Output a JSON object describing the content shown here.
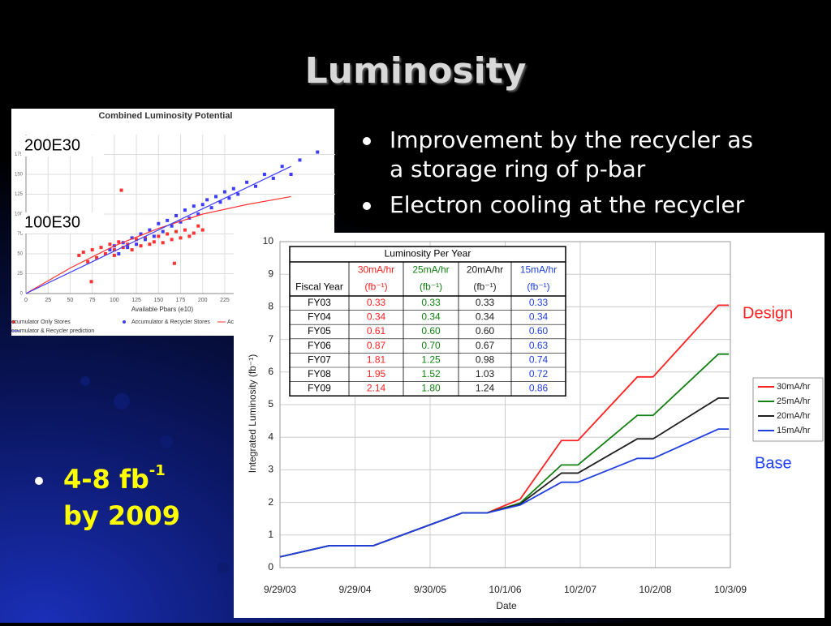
{
  "title": "Luminosity",
  "bullets": [
    "Improvement by the recycler as a storage ring of p-bar",
    "Electron cooling at the recycler"
  ],
  "bullet_lines": [
    [
      "Improvement by the recycler as",
      "a storage ring of p-bar"
    ],
    [
      "Electron cooling at the recycler"
    ]
  ],
  "highlight": {
    "parts": [
      "4-8 fb",
      "-1",
      "by 2009"
    ],
    "color": "#ffff00"
  },
  "chart_data": [
    {
      "type": "scatter",
      "title": "Combined Luminosity Potential",
      "x_label": "Available Pbars (e10)",
      "annotations": [
        "200E30",
        "100E30"
      ],
      "xlim": [
        0,
        350
      ],
      "ylim": [
        0,
        200
      ],
      "xticks": [
        0,
        25,
        50,
        75,
        100,
        125,
        150,
        175,
        200,
        225
      ],
      "yticks": [
        0,
        25,
        50,
        75,
        100,
        125,
        150,
        175
      ],
      "grid": true,
      "series": [
        {
          "name": "ccumulator Only Stores",
          "color": "#ff3030",
          "kind": "points",
          "x": [
            60,
            65,
            70,
            75,
            80,
            85,
            90,
            95,
            100,
            100,
            105,
            110,
            115,
            120,
            125,
            130,
            135,
            140,
            145,
            150,
            155,
            160,
            165,
            170,
            175,
            180,
            185,
            190,
            195,
            200,
            168,
            108,
            74
          ],
          "values": [
            48,
            52,
            40,
            55,
            45,
            58,
            50,
            62,
            55,
            48,
            65,
            58,
            62,
            55,
            68,
            60,
            70,
            62,
            65,
            72,
            64,
            75,
            68,
            78,
            70,
            80,
            72,
            76,
            85,
            80,
            38,
            130,
            15
          ]
        },
        {
          "name": "Accumulator & Recycler Stores",
          "color": "#3c3cff",
          "kind": "points",
          "x": [
            95,
            100,
            105,
            110,
            115,
            120,
            125,
            130,
            135,
            140,
            145,
            150,
            155,
            160,
            165,
            170,
            175,
            180,
            185,
            190,
            195,
            200,
            205,
            210,
            215,
            220,
            225,
            230,
            235,
            240,
            250,
            260,
            270,
            280,
            290,
            300,
            310,
            330
          ],
          "values": [
            55,
            60,
            50,
            64,
            58,
            70,
            62,
            75,
            68,
            80,
            72,
            88,
            78,
            92,
            85,
            98,
            90,
            105,
            95,
            110,
            100,
            112,
            118,
            108,
            122,
            115,
            128,
            120,
            132,
            125,
            140,
            135,
            150,
            145,
            160,
            150,
            168,
            178
          ]
        },
        {
          "name": "Accumulat",
          "color": "#ff3030",
          "kind": "line",
          "x": [
            0,
            50,
            100,
            150,
            200,
            250,
            300
          ],
          "values": [
            0,
            32,
            60,
            82,
            100,
            112,
            122
          ]
        },
        {
          "name": "ccumulator & Recycler prediction",
          "color": "#3c3cff",
          "kind": "line",
          "x": [
            0,
            300
          ],
          "values": [
            0,
            160
          ]
        }
      ]
    },
    {
      "type": "line",
      "x_label": "Date",
      "y_label": "Integrated Luminosity (fb⁻¹)",
      "xlim": [
        0,
        6
      ],
      "ylim": [
        0,
        10
      ],
      "xticks": [
        {
          "value": 0,
          "label": "9/29/03"
        },
        {
          "value": 1,
          "label": "9/29/04"
        },
        {
          "value": 2,
          "label": "9/30/05"
        },
        {
          "value": 3,
          "label": "10/1/06"
        },
        {
          "value": 4,
          "label": "10/2/07"
        },
        {
          "value": 5,
          "label": "10/2/08"
        },
        {
          "value": 6,
          "label": "10/3/09"
        }
      ],
      "yticks": [
        0,
        1,
        2,
        3,
        4,
        5,
        6,
        7,
        8,
        9,
        10
      ],
      "grid": true,
      "legend": "right",
      "annotations": [
        {
          "text": "Design",
          "color": "#ff2020"
        },
        {
          "text": "Base",
          "color": "#2040ff"
        }
      ],
      "x": [
        0,
        0.65,
        1.24,
        2.43,
        2.76,
        3.2,
        3.75,
        3.97,
        4.76,
        4.97,
        5.84,
        5.98
      ],
      "series": [
        {
          "name": "30mA/hr",
          "color": "#ff2020",
          "values": [
            0.33,
            0.67,
            0.67,
            1.68,
            1.68,
            2.1,
            3.9,
            3.9,
            5.85,
            5.85,
            8.05,
            8.05
          ]
        },
        {
          "name": "25mA/hr",
          "color": "#128012",
          "values": [
            0.33,
            0.67,
            0.67,
            1.68,
            1.68,
            1.98,
            3.15,
            3.15,
            4.67,
            4.67,
            6.55,
            6.55
          ]
        },
        {
          "name": "20mA/hr",
          "color": "#202020",
          "values": [
            0.33,
            0.67,
            0.67,
            1.68,
            1.68,
            1.95,
            2.9,
            2.9,
            3.95,
            3.95,
            5.2,
            5.2
          ]
        },
        {
          "name": "15mA/hr",
          "color": "#2040e0",
          "values": [
            0.33,
            0.67,
            0.67,
            1.68,
            1.68,
            1.92,
            2.62,
            2.62,
            3.35,
            3.35,
            4.25,
            4.25
          ]
        }
      ],
      "table": {
        "title": "Luminosity Per Year",
        "columns": [
          "30mA/hr",
          "25mA/hr",
          "20mA/hr",
          "15mA/hr"
        ],
        "column_colors": [
          "#ff2020",
          "#128012",
          "#202020",
          "#2040e0"
        ],
        "row_header": "Fiscal Year",
        "units": [
          "(fb⁻¹)",
          "(fb⁻¹)",
          "(fb⁻¹)",
          "(fb⁻¹)"
        ],
        "rows": [
          [
            "FY03",
            "0.33",
            "0.33",
            "0.33",
            "0.33"
          ],
          [
            "FY04",
            "0.34",
            "0.34",
            "0.34",
            "0.34"
          ],
          [
            "FY05",
            "0.61",
            "0.60",
            "0.60",
            "0.60"
          ],
          [
            "FY06",
            "0.87",
            "0.70",
            "0.67",
            "0.63"
          ],
          [
            "FY07",
            "1.81",
            "1.25",
            "0.98",
            "0.74"
          ],
          [
            "FY08",
            "1.95",
            "1.52",
            "1.03",
            "0.72"
          ],
          [
            "FY09",
            "2.14",
            "1.80",
            "1.24",
            "0.86"
          ]
        ]
      }
    }
  ]
}
